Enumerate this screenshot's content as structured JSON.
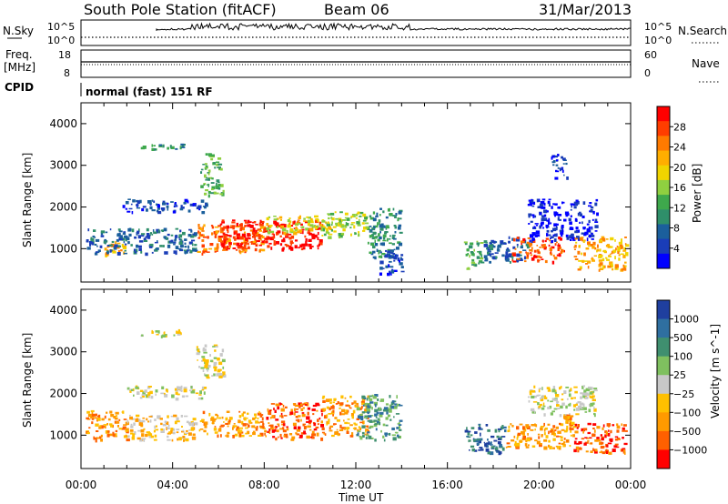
{
  "header": {
    "title": "South Pole Station (fitACF)",
    "beam": "Beam 06",
    "date": "31/Mar/2013"
  },
  "top_panels": {
    "nsky_label": "N.Sky",
    "nsky_ticks": [
      "10^5",
      "10^0"
    ],
    "nsearch_label": "N.Search",
    "nsearch_ticks": [
      "10^5",
      "10^0"
    ],
    "freq_label": "Freq.",
    "freq_unit": "[MHz]",
    "freq_ticks": [
      "18",
      "8"
    ],
    "nave_label": "Nave",
    "nave_ticks": [
      "60",
      "0"
    ],
    "cpid_label": "CPID",
    "cpid_value": "normal (fast) 151 RF"
  },
  "chart_data": [
    {
      "type": "heatmap",
      "name": "power",
      "ylabel": "Slant Range [km]",
      "yticks": [
        "4000",
        "3000",
        "2000",
        "1000"
      ],
      "ylim": [
        200,
        4500
      ],
      "xlim_hours": [
        0,
        24
      ],
      "colorbar": {
        "label": "Power [dB]",
        "ticks": [
          "28",
          "24",
          "20",
          "16",
          "12",
          "8",
          "4"
        ],
        "colors": [
          "#ff0000",
          "#ff3d00",
          "#ff7a00",
          "#ffae00",
          "#f0d400",
          "#8fcf40",
          "#3ea84c",
          "#2f8f6a",
          "#1b5f9c",
          "#1a3db8",
          "#0000ff"
        ]
      },
      "regions": [
        {
          "t0": 1.0,
          "t1": 1.9,
          "r0": 800,
          "r1": 1200,
          "level": 3
        },
        {
          "t0": 1.8,
          "t1": 5.5,
          "r0": 1900,
          "r1": 2200,
          "level": 9
        },
        {
          "t0": 2.5,
          "t1": 4.5,
          "r0": 3400,
          "r1": 3550,
          "level": 7
        },
        {
          "t0": 5.2,
          "t1": 6.2,
          "r0": 2300,
          "r1": 3300,
          "level": 6
        },
        {
          "t0": 0.2,
          "t1": 5.0,
          "r0": 900,
          "r1": 1500,
          "level": 8
        },
        {
          "t0": 5.0,
          "t1": 8.0,
          "r0": 900,
          "r1": 1600,
          "level": 2
        },
        {
          "t0": 6.0,
          "t1": 10.5,
          "r0": 1000,
          "r1": 1700,
          "level": 0
        },
        {
          "t0": 8.0,
          "t1": 11.5,
          "r0": 1400,
          "r1": 1800,
          "level": 4
        },
        {
          "t0": 10.5,
          "t1": 12.5,
          "r0": 1300,
          "r1": 1900,
          "level": 5
        },
        {
          "t0": 12.5,
          "t1": 13.9,
          "r0": 800,
          "r1": 2000,
          "level": 7
        },
        {
          "t0": 13.0,
          "t1": 14.0,
          "r0": 400,
          "r1": 1000,
          "level": 9
        },
        {
          "t0": 16.7,
          "t1": 17.5,
          "r0": 500,
          "r1": 1200,
          "level": 6
        },
        {
          "t0": 17.5,
          "t1": 19.5,
          "r0": 700,
          "r1": 1300,
          "level": 8
        },
        {
          "t0": 18.8,
          "t1": 21.0,
          "r0": 700,
          "r1": 1300,
          "level": 1
        },
        {
          "t0": 19.5,
          "t1": 22.5,
          "r0": 1200,
          "r1": 2200,
          "level": 10
        },
        {
          "t0": 20.5,
          "t1": 21.2,
          "r0": 2700,
          "r1": 3300,
          "level": 9
        },
        {
          "t0": 21.5,
          "t1": 23.8,
          "r0": 500,
          "r1": 1300,
          "level": 3
        }
      ]
    },
    {
      "type": "heatmap",
      "name": "velocity",
      "ylabel": "Slant Range [km]",
      "yticks": [
        "4000",
        "3000",
        "2000",
        "1000"
      ],
      "ylim": [
        200,
        4500
      ],
      "xlim_hours": [
        0,
        24
      ],
      "xticks": [
        "00:00",
        "04:00",
        "08:00",
        "12:00",
        "16:00",
        "20:00",
        "00:00"
      ],
      "xlabel": "Time UT",
      "colorbar": {
        "label": "Velocity [m s^-1]",
        "ticks": [
          "1000",
          "500",
          "100",
          "25",
          "−25",
          "−100",
          "−500",
          "−1000"
        ],
        "colors": [
          "#1f3f9f",
          "#2f6fa0",
          "#3f8f6f",
          "#7fc05f",
          "#c8c8c8",
          "#ffc000",
          "#ff9a00",
          "#ff6000",
          "#ff0000"
        ]
      },
      "regions": [
        {
          "t0": 0.2,
          "t1": 2.0,
          "r0": 900,
          "r1": 1600,
          "level": 6
        },
        {
          "t0": 2.0,
          "t1": 5.0,
          "r0": 900,
          "r1": 1500,
          "level": 5
        },
        {
          "t0": 2.0,
          "t1": 5.5,
          "r0": 1900,
          "r1": 2200,
          "level": 4
        },
        {
          "t0": 2.5,
          "t1": 4.5,
          "r0": 3400,
          "r1": 3550,
          "level": 4
        },
        {
          "t0": 5.0,
          "t1": 6.2,
          "r0": 2400,
          "r1": 3200,
          "level": 4
        },
        {
          "t0": 5.0,
          "t1": 8.0,
          "r0": 1000,
          "r1": 1600,
          "level": 6
        },
        {
          "t0": 8.0,
          "t1": 10.5,
          "r0": 900,
          "r1": 1800,
          "level": 7
        },
        {
          "t0": 10.5,
          "t1": 12.5,
          "r0": 1000,
          "r1": 2000,
          "level": 6
        },
        {
          "t0": 12.0,
          "t1": 13.9,
          "r0": 900,
          "r1": 2000,
          "level": 2
        },
        {
          "t0": 16.7,
          "t1": 18.5,
          "r0": 600,
          "r1": 1300,
          "level": 1
        },
        {
          "t0": 18.5,
          "t1": 21.5,
          "r0": 700,
          "r1": 1300,
          "level": 6
        },
        {
          "t0": 19.5,
          "t1": 22.5,
          "r0": 1500,
          "r1": 2200,
          "level": 4
        },
        {
          "t0": 21.5,
          "t1": 23.8,
          "r0": 600,
          "r1": 1300,
          "level": 7
        },
        {
          "t0": 21.0,
          "t1": 21.4,
          "r0": 1300,
          "r1": 1500,
          "level": 6
        }
      ]
    }
  ]
}
